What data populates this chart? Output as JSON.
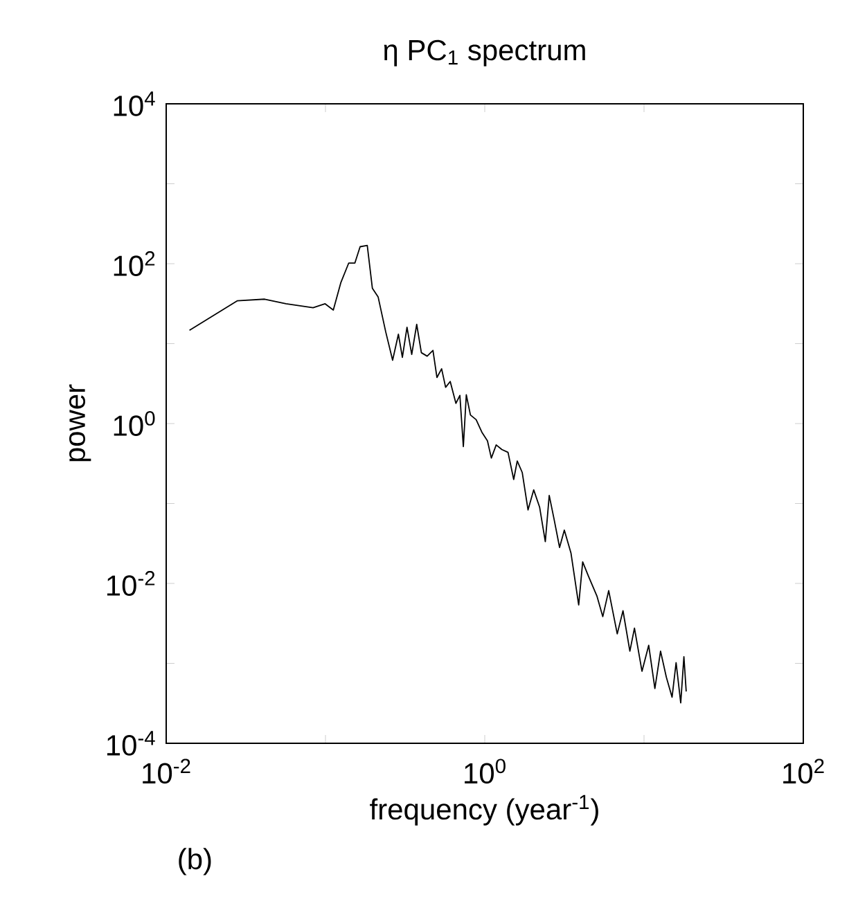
{
  "chart_data": {
    "type": "line",
    "title": "η PC$_{1}$ spectrum",
    "xlabel": "frequency (year$^{-1}$)",
    "ylabel": "power",
    "annotations": [
      "(b)"
    ],
    "log": "xy",
    "xlim": [
      0.01,
      100
    ],
    "ylim": [
      0.0001,
      10000
    ],
    "xticks": [
      {
        "value": 0.01,
        "label": "10$^{-2}$"
      },
      {
        "value": 0.1,
        "label": null
      },
      {
        "value": 1,
        "label": "10$^{0}$"
      },
      {
        "value": 10,
        "label": null
      },
      {
        "value": 100,
        "label": "10$^{2}$"
      }
    ],
    "yticks": [
      {
        "value": 0.0001,
        "label": "10$^{-4}$"
      },
      {
        "value": 0.001,
        "label": null
      },
      {
        "value": 0.01,
        "label": "10$^{-2}$"
      },
      {
        "value": 0.1,
        "label": null
      },
      {
        "value": 1,
        "label": "10$^{0}$"
      },
      {
        "value": 10,
        "label": null
      },
      {
        "value": 100,
        "label": "10$^{2}$"
      },
      {
        "value": 1000,
        "label": null
      },
      {
        "value": 10000,
        "label": "10$^{4}$"
      }
    ],
    "series": [
      {
        "color": "#000000",
        "x": [
          0.014,
          0.0279,
          0.0415,
          0.0565,
          0.0836,
          0.0995,
          0.112,
          0.125,
          0.14,
          0.153,
          0.165,
          0.183,
          0.197,
          0.214,
          0.239,
          0.264,
          0.287,
          0.304,
          0.325,
          0.348,
          0.374,
          0.4,
          0.435,
          0.473,
          0.501,
          0.536,
          0.568,
          0.607,
          0.659,
          0.698,
          0.734,
          0.766,
          0.813,
          0.883,
          0.959,
          1.04,
          1.1,
          1.18,
          1.28,
          1.4,
          1.52,
          1.6,
          1.72,
          1.87,
          2.03,
          2.21,
          2.4,
          2.54,
          2.72,
          2.95,
          3.16,
          3.48,
          3.89,
          4.12,
          4.48,
          5.07,
          5.51,
          6.0,
          6.79,
          7.38,
          8.15,
          8.71,
          9.71,
          10.7,
          11.7,
          12.7,
          13.8,
          15.0,
          15.9,
          17.0,
          17.8,
          18.4
        ],
        "values": [
          14.7,
          34.3,
          36,
          31.5,
          28.1,
          31.5,
          26.3,
          58.3,
          102,
          102,
          163,
          169,
          49.4,
          38.5,
          14.0,
          6.2,
          13.1,
          6.74,
          16.0,
          7.33,
          17.4,
          7.7,
          6.97,
          8.23,
          3.77,
          4.84,
          2.84,
          3.36,
          1.79,
          2.25,
          0.515,
          2.29,
          1.28,
          1.12,
          0.78,
          0.608,
          0.37,
          0.541,
          0.474,
          0.436,
          0.2,
          0.34,
          0.244,
          0.083,
          0.148,
          0.0902,
          0.0333,
          0.126,
          0.0647,
          0.0282,
          0.0464,
          0.0239,
          0.00537,
          0.0186,
          0.0123,
          0.00689,
          0.00385,
          0.00813,
          0.00234,
          0.00455,
          0.00142,
          0.00276,
          0.000796,
          0.00168,
          0.000484,
          0.00142,
          0.000674,
          0.000377,
          0.00102,
          0.00032,
          0.00121,
          0.000445
        ]
      }
    ]
  }
}
